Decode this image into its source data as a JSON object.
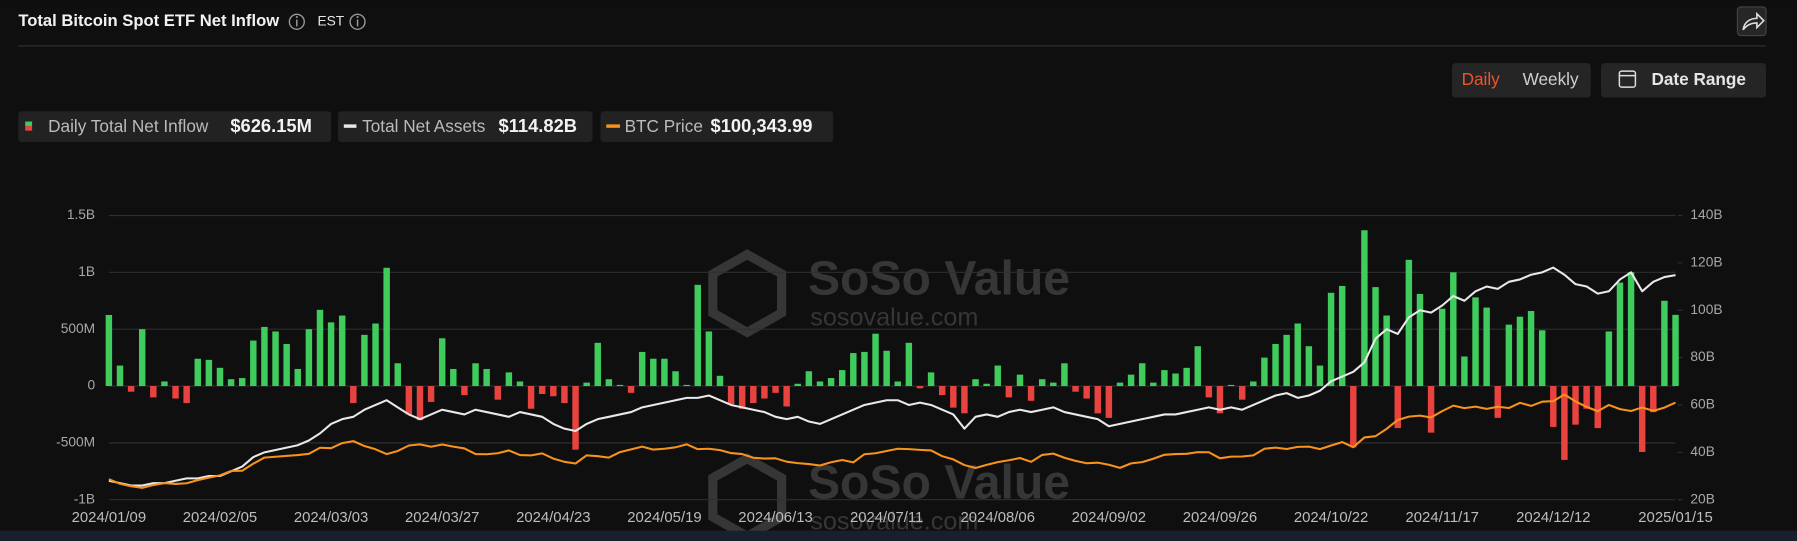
{
  "chart_data": {
    "type": "bar",
    "title": "Total Bitcoin Spot ETF Net Inflow",
    "timezone": "EST",
    "categories": [
      "2024/01/09",
      null,
      null,
      null,
      null,
      null,
      null,
      null,
      null,
      null,
      "2024/02/05",
      null,
      null,
      null,
      null,
      null,
      null,
      null,
      null,
      null,
      "2024/03/03",
      null,
      null,
      null,
      null,
      null,
      null,
      null,
      null,
      null,
      "2024/03/27",
      null,
      null,
      null,
      null,
      null,
      null,
      null,
      null,
      null,
      "2024/04/23",
      null,
      null,
      null,
      null,
      null,
      null,
      null,
      null,
      null,
      "2024/05/19",
      null,
      null,
      null,
      null,
      null,
      null,
      null,
      null,
      null,
      "2024/06/13",
      null,
      null,
      null,
      null,
      null,
      null,
      null,
      null,
      null,
      "2024/07/11",
      null,
      null,
      null,
      null,
      null,
      null,
      null,
      null,
      null,
      "2024/08/06",
      null,
      null,
      null,
      null,
      null,
      null,
      null,
      null,
      null,
      "2024/09/02",
      null,
      null,
      null,
      null,
      null,
      null,
      null,
      null,
      null,
      "2024/09/26",
      null,
      null,
      null,
      null,
      null,
      null,
      null,
      null,
      null,
      "2024/10/22",
      null,
      null,
      null,
      null,
      null,
      null,
      null,
      null,
      null,
      "2024/11/17",
      null,
      null,
      null,
      null,
      null,
      null,
      null,
      null,
      null,
      "2024/12/12",
      null,
      null,
      null,
      null,
      null,
      null,
      null,
      null,
      null,
      null,
      "2025/01/15"
    ],
    "series": [
      {
        "name": "Daily Total Net Inflow",
        "type": "bar",
        "color": "#3fcc5c",
        "negative_color": "#e8433f",
        "current": "$626.15M",
        "values": [
          625,
          180,
          -50,
          500,
          -100,
          40,
          -110,
          -150,
          240,
          230,
          160,
          60,
          70,
          400,
          520,
          480,
          370,
          150,
          500,
          670,
          560,
          620,
          -150,
          450,
          550,
          1040,
          200,
          -250,
          -300,
          -140,
          420,
          150,
          -80,
          200,
          150,
          -120,
          120,
          40,
          -200,
          -70,
          -90,
          -150,
          -560,
          30,
          380,
          60,
          10,
          -60,
          300,
          240,
          240,
          130,
          10,
          890,
          480,
          90,
          -160,
          -200,
          -150,
          -110,
          -60,
          -180,
          20,
          130,
          40,
          70,
          140,
          290,
          300,
          460,
          310,
          40,
          380,
          -20,
          120,
          -80,
          -190,
          -240,
          60,
          20,
          180,
          -100,
          100,
          -130,
          60,
          30,
          200,
          -50,
          -110,
          -240,
          -280,
          30,
          100,
          200,
          30,
          140,
          110,
          160,
          350,
          -100,
          -240,
          10,
          -120,
          40,
          250,
          370,
          450,
          550,
          350,
          180,
          820,
          880,
          -540,
          1370,
          870,
          620,
          -370,
          1110,
          810,
          -410,
          680,
          1000,
          260,
          780,
          690,
          -280,
          540,
          610,
          660,
          490,
          -360,
          -650,
          -340,
          -200,
          -370,
          480,
          910,
          1000,
          -580,
          -230,
          750,
          626.15
        ]
      },
      {
        "name": "Total Net Assets",
        "type": "line",
        "axis": "y2",
        "color": "#e9e9e9",
        "current": "$114.82B",
        "values": [
          28,
          27,
          26,
          26,
          27,
          27,
          28,
          29,
          29,
          30,
          30,
          32,
          34,
          38,
          40,
          41,
          42,
          43,
          45,
          48,
          52,
          54,
          55,
          58,
          60,
          62,
          59,
          56,
          54,
          56,
          58,
          57,
          56,
          58,
          57,
          56,
          55,
          57,
          56,
          55,
          52,
          50,
          49,
          52,
          54,
          55,
          56,
          57,
          59,
          60,
          61,
          62,
          63,
          63,
          64,
          62,
          60,
          59,
          58,
          57,
          55,
          54,
          55,
          53,
          52,
          54,
          56,
          58,
          60,
          61,
          62,
          62,
          60,
          61,
          60,
          58,
          56,
          50,
          55,
          56,
          55,
          57,
          58,
          57,
          58,
          59,
          57,
          56,
          55,
          54,
          51,
          52,
          53,
          54,
          55,
          56,
          56,
          57,
          58,
          59,
          58,
          59,
          58,
          60,
          62,
          64,
          65,
          63,
          64,
          66,
          70,
          72,
          74,
          78,
          88,
          92,
          90,
          97,
          100,
          99,
          102,
          106,
          104,
          108,
          110,
          109,
          112,
          113,
          115,
          116,
          118,
          115,
          111,
          110,
          107,
          108,
          113,
          116,
          108,
          112,
          114,
          114.82
        ]
      },
      {
        "name": "BTC Price",
        "type": "line",
        "axis": "y3",
        "color": "#f7931a",
        "current": "$100,343.99",
        "values": [
          46000,
          42700,
          41000,
          39800,
          41800,
          43200,
          42600,
          43100,
          45300,
          47100,
          48700,
          51800,
          52000,
          57000,
          61300,
          61900,
          62500,
          63100,
          64000,
          68300,
          68000,
          71600,
          73000,
          69500,
          67200,
          63800,
          66000,
          69900,
          70700,
          69000,
          70600,
          69100,
          67800,
          63800,
          63700,
          64400,
          66400,
          63100,
          62900,
          64300,
          60600,
          58300,
          57100,
          62900,
          62300,
          61300,
          65200,
          67100,
          69100,
          67000,
          67600,
          68600,
          70700,
          67300,
          67600,
          66600,
          64500,
          63800,
          61200,
          60600,
          60800,
          58400,
          57400,
          56700,
          55700,
          58000,
          59600,
          57900,
          63700,
          64400,
          66000,
          67600,
          67300,
          66800,
          66400,
          62300,
          60000,
          56000,
          53900,
          56100,
          58100,
          59400,
          61000,
          58300,
          63200,
          64100,
          61200,
          59000,
          57300,
          57700,
          56200,
          54000,
          57200,
          58100,
          60500,
          63300,
          63800,
          64000,
          65200,
          65100,
          60800,
          62000,
          62100,
          62900,
          67600,
          68400,
          67400,
          68900,
          69100,
          67300,
          69900,
          72300,
          68700,
          75600,
          76500,
          81700,
          88000,
          90400,
          91100,
          89800,
          94300,
          98200,
          96400,
          97500,
          95900,
          97400,
          96500,
          100200,
          98000,
          101000,
          101400,
          106100,
          101200,
          97300,
          94200,
          98700,
          95700,
          94400,
          96900,
          94500,
          96800,
          100343.99
        ]
      }
    ],
    "ylim": [
      -1000,
      1500
    ],
    "yticks": [
      {
        "value": -1000,
        "label": "-1B"
      },
      {
        "value": -500,
        "label": "-500M"
      },
      0,
      {
        "value": 500,
        "label": "500M"
      },
      {
        "value": 1000,
        "label": "1B"
      },
      {
        "value": 1500,
        "label": "1.5B"
      }
    ],
    "y2lim": [
      20,
      140
    ],
    "y2ticks": [
      {
        "value": 20,
        "label": "20B"
      },
      {
        "value": 40,
        "label": "40B"
      },
      {
        "value": 60,
        "label": "60B"
      },
      {
        "value": 80,
        "label": "80B"
      },
      {
        "value": 100,
        "label": "100B"
      },
      {
        "value": 120,
        "label": "120B"
      },
      {
        "value": 140,
        "label": "140B"
      }
    ],
    "y3lim": [
      31400,
      233200
    ],
    "grid": true
  },
  "controls": {
    "daily": "Daily",
    "weekly": "Weekly",
    "date_range": "Date Range"
  },
  "watermark": {
    "name": "SoSo Value",
    "url": "sosovalue.com"
  }
}
